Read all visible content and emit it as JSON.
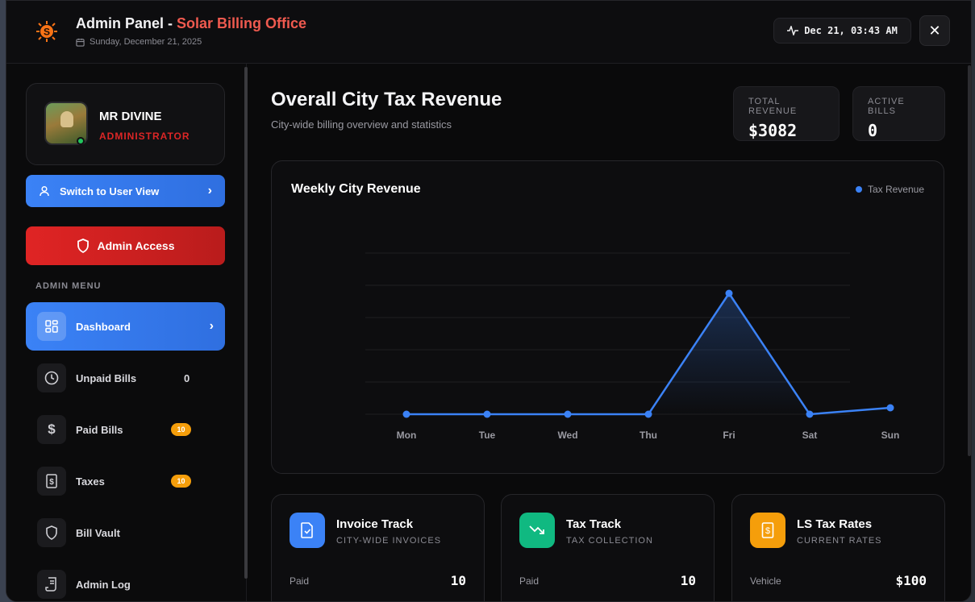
{
  "header": {
    "title_main": "Admin Panel - ",
    "title_accent": "Solar Billing Office",
    "date": "Sunday, December 21, 2025",
    "clock": "Dec 21, 03:43 AM",
    "close_icon": "close-icon"
  },
  "profile": {
    "name": "MR DIVINE",
    "role": "ADMINISTRATOR",
    "status": "online"
  },
  "sidebar": {
    "switch_label": "Switch to User View",
    "admin_label": "Admin Access",
    "menu_heading": "ADMIN MENU",
    "items": [
      {
        "label": "Dashboard",
        "icon": "grid-icon",
        "active": true
      },
      {
        "label": "Unpaid Bills",
        "icon": "clock-icon",
        "count": "0"
      },
      {
        "label": "Paid Bills",
        "icon": "dollar-icon",
        "badge": "10"
      },
      {
        "label": "Taxes",
        "icon": "receipt-icon",
        "badge": "10"
      },
      {
        "label": "Bill Vault",
        "icon": "shield-icon"
      },
      {
        "label": "Admin Log",
        "icon": "scroll-icon"
      }
    ]
  },
  "main": {
    "title": "Overall City Tax Revenue",
    "subtitle": "City-wide billing overview and statistics",
    "stats": [
      {
        "label": "TOTAL REVENUE",
        "value": "$3082"
      },
      {
        "label": "ACTIVE BILLS",
        "value": "0"
      }
    ]
  },
  "chart_data": {
    "type": "area",
    "title": "Weekly City Revenue",
    "categories": [
      "Mon",
      "Tue",
      "Wed",
      "Thu",
      "Fri",
      "Sat",
      "Sun"
    ],
    "series": [
      {
        "name": "Tax Revenue",
        "values": [
          0,
          0,
          0,
          0,
          3000,
          0,
          160
        ],
        "color": "#3b82f6"
      }
    ],
    "ylim": [
      0,
      4000
    ],
    "grid": true,
    "legend": "top-right"
  },
  "cards": [
    {
      "title": "Invoice Track",
      "subtitle": "CITY-WIDE INVOICES",
      "row_label": "Paid",
      "row_value": "10",
      "icon": "invoice-check-icon",
      "color": "#3b82f6"
    },
    {
      "title": "Tax Track",
      "subtitle": "TAX COLLECTION",
      "row_label": "Paid",
      "row_value": "10",
      "icon": "trend-down-icon",
      "color": "#10b981"
    },
    {
      "title": "LS Tax Rates",
      "subtitle": "CURRENT RATES",
      "row_label": "Vehicle",
      "row_value": "$100",
      "icon": "dollar-receipt-icon",
      "color": "#f59e0b"
    }
  ]
}
